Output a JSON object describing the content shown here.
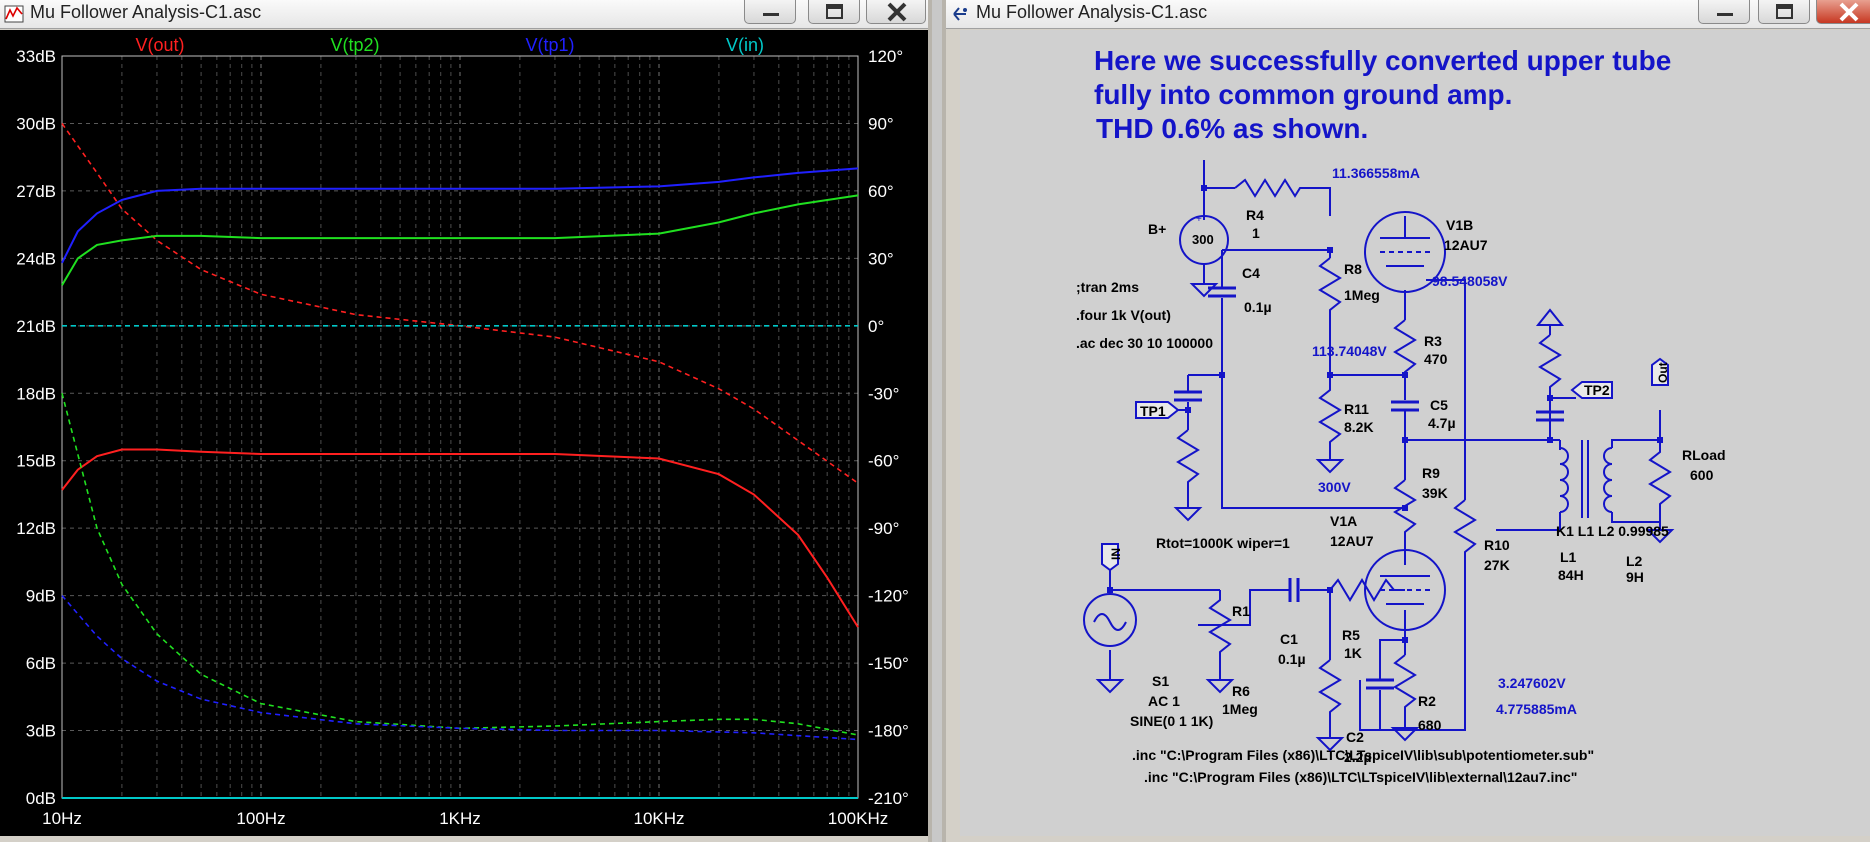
{
  "left_window": {
    "title": "Mu Follower Analysis-C1.asc",
    "icon": "waveform-icon",
    "controls": [
      "minimize-icon",
      "maximize-icon",
      "close-icon"
    ]
  },
  "right_window": {
    "title": "Mu Follower Analysis-C1.asc",
    "icon": "schematic-icon",
    "controls": [
      "minimize-icon",
      "maximize-icon",
      "close-icon"
    ]
  },
  "chart_data": {
    "type": "line",
    "x_scale": "log",
    "x_range": [
      10,
      100000
    ],
    "x_ticks": [
      "10Hz",
      "100Hz",
      "1KHz",
      "10KHz",
      "100KHz"
    ],
    "y_left_range": [
      0,
      33
    ],
    "y_left_ticks": [
      "0dB",
      "3dB",
      "6dB",
      "9dB",
      "12dB",
      "15dB",
      "18dB",
      "21dB",
      "24dB",
      "27dB",
      "30dB",
      "33dB"
    ],
    "y_right_range": [
      -210,
      120
    ],
    "y_right_ticks": [
      "-210°",
      "-180°",
      "-150°",
      "-120°",
      "-90°",
      "-60°",
      "-30°",
      "0°",
      "30°",
      "60°",
      "90°",
      "120°"
    ],
    "grid": true,
    "legend_placement": "top",
    "colors": {
      "background": "#000000",
      "grid": "#808080",
      "axis_text": "#ffffff"
    },
    "series": [
      {
        "name": "V(out)",
        "color": "#ff2020",
        "magnitude_db": {
          "x": [
            10,
            12,
            15,
            20,
            30,
            50,
            100,
            300,
            1000,
            3000,
            10000,
            20000,
            30000,
            50000,
            70000,
            100000
          ],
          "y": [
            13.7,
            14.6,
            15.2,
            15.5,
            15.5,
            15.4,
            15.3,
            15.3,
            15.3,
            15.3,
            15.1,
            14.4,
            13.5,
            11.7,
            9.8,
            7.6
          ]
        },
        "phase_deg": {
          "x": [
            10,
            15,
            20,
            30,
            50,
            100,
            300,
            1000,
            3000,
            10000,
            20000,
            30000,
            50000,
            100000
          ],
          "y": [
            90,
            68,
            52,
            38,
            25,
            14,
            5,
            0,
            -5,
            -16,
            -28,
            -37,
            -51,
            -70
          ]
        }
      },
      {
        "name": "V(tp2)",
        "color": "#20e020",
        "magnitude_db": {
          "x": [
            10,
            12,
            15,
            20,
            30,
            50,
            100,
            300,
            1000,
            3000,
            10000,
            20000,
            30000,
            50000,
            100000
          ],
          "y": [
            22.8,
            24.0,
            24.6,
            24.8,
            25.0,
            25.0,
            24.9,
            24.9,
            24.9,
            24.9,
            25.1,
            25.6,
            26.0,
            26.4,
            26.8
          ]
        },
        "phase_deg": {
          "x": [
            10,
            15,
            20,
            30,
            50,
            100,
            300,
            1000,
            3000,
            10000,
            20000,
            30000,
            50000,
            100000
          ],
          "y": [
            -30,
            -90,
            -115,
            -137,
            -155,
            -168,
            -176,
            -179,
            -178,
            -176,
            -175,
            -175,
            -177,
            -182
          ]
        }
      },
      {
        "name": "V(tp1)",
        "color": "#2020ff",
        "magnitude_db": {
          "x": [
            10,
            12,
            15,
            20,
            30,
            50,
            100,
            300,
            1000,
            3000,
            10000,
            20000,
            30000,
            50000,
            100000
          ],
          "y": [
            23.8,
            25.2,
            26.0,
            26.6,
            27.0,
            27.1,
            27.1,
            27.1,
            27.1,
            27.1,
            27.2,
            27.4,
            27.6,
            27.8,
            28.0
          ]
        },
        "phase_deg": {
          "x": [
            10,
            15,
            20,
            30,
            50,
            100,
            300,
            1000,
            3000,
            10000,
            30000,
            100000
          ],
          "y": [
            -120,
            -138,
            -148,
            -158,
            -166,
            -172,
            -177,
            -179,
            -180,
            -180,
            -181,
            -184
          ]
        }
      },
      {
        "name": "V(in)",
        "color": "#00c8c8",
        "magnitude_db": {
          "x": [
            10,
            100000
          ],
          "y": [
            0.0,
            0.0
          ]
        },
        "phase_deg": {
          "x": [
            10,
            100000
          ],
          "y": [
            0,
            0
          ]
        }
      }
    ]
  },
  "schematic": {
    "heading": [
      "Here we successfully converted upper tube",
      "fully into common ground amp.",
      "THD 0.6% as shown."
    ],
    "directives": [
      ";tran 2ms",
      ".four 1k V(out)",
      ".ac dec 30 10 100000"
    ],
    "includes": [
      ".inc \"C:\\Program Files (x86)\\LTC\\LTspiceIV\\lib\\sub\\potentiometer.sub\"",
      ".inc \"C:\\Program Files (x86)\\LTC\\LTspiceIV\\lib\\external\\12au7.inc\""
    ],
    "bplus": {
      "label": "B+",
      "value": "300"
    },
    "source": {
      "name": "S1",
      "spec": "AC 1",
      "wave": "SINE(0 1 1K)"
    },
    "pot": {
      "name": "R1",
      "param": "Rtot=1000K wiper=1"
    },
    "tube_upper": {
      "name": "V1B",
      "model": "12AU7"
    },
    "tube_lower": {
      "name": "V1A",
      "model": "12AU7"
    },
    "resistors": [
      {
        "name": "R4",
        "value": "1"
      },
      {
        "name": "R8",
        "value": "1Meg"
      },
      {
        "name": "R3",
        "value": "470"
      },
      {
        "name": "R11",
        "value": "8.2K"
      },
      {
        "name": "R9",
        "value": "39K"
      },
      {
        "name": "R10",
        "value": "27K"
      },
      {
        "name": "R5",
        "value": "1K"
      },
      {
        "name": "R6",
        "value": "1Meg"
      },
      {
        "name": "R2",
        "value": "680"
      },
      {
        "name": "RLoad",
        "value": "600"
      }
    ],
    "capacitors": [
      {
        "name": "C4",
        "value": "0.1µ"
      },
      {
        "name": "C5",
        "value": "4.7µ"
      },
      {
        "name": "C1",
        "value": "0.1µ"
      },
      {
        "name": "C2",
        "value": "2.2µ"
      }
    ],
    "inductors": {
      "coupling": "K1 L1 L2 0.99985",
      "l1_name": "L1",
      "l1_value": "84H",
      "l2_name": "L2",
      "l2_value": "9H"
    },
    "flags": {
      "tp1": "TP1",
      "tp2": "TP2",
      "in": "IN",
      "out": "Out"
    },
    "probes": [
      "11.366558mA",
      "98.548058V",
      "113.74048V",
      "300V",
      "3.247602V",
      "4.775885mA"
    ]
  }
}
